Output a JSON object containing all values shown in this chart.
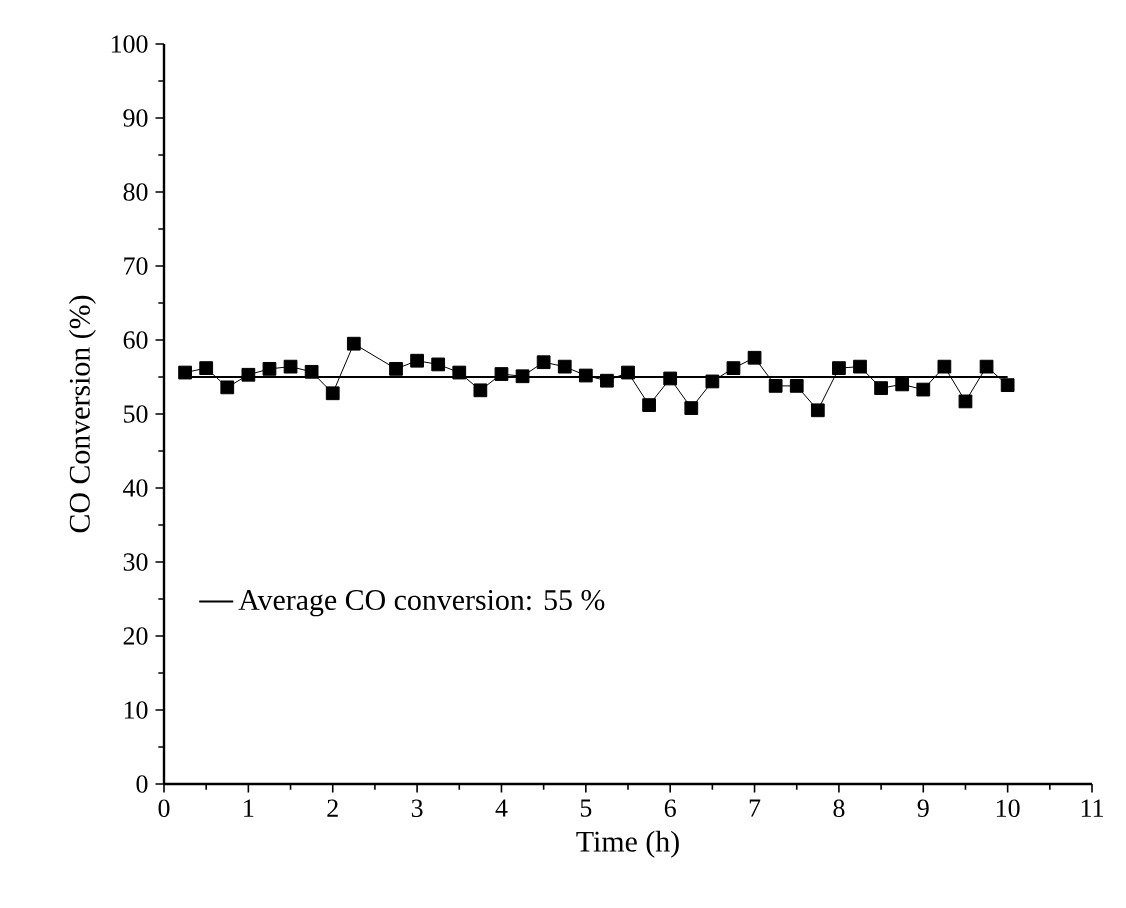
{
  "chart_data": {
    "type": "line",
    "xlabel": "Time (h)",
    "ylabel": "CO Conversion (%)",
    "xlim": [
      0,
      11
    ],
    "xticks": [
      0,
      1,
      2,
      3,
      4,
      5,
      6,
      7,
      8,
      9,
      10,
      11
    ],
    "ylim": [
      0,
      100
    ],
    "yticks": [
      0,
      10,
      20,
      30,
      40,
      50,
      60,
      70,
      80,
      90,
      100
    ],
    "legend": "bottom left",
    "grid": false,
    "series": [
      {
        "color": "#000000",
        "marker": "square",
        "x": [
          0.25,
          0.5,
          0.75,
          1,
          1.25,
          1.5,
          1.75,
          2,
          2.25,
          2.75,
          3,
          3.25,
          3.5,
          3.75,
          4,
          4.25,
          4.5,
          4.75,
          5,
          5.25,
          5.5,
          5.75,
          6,
          6.25,
          6.5,
          6.75,
          7,
          7.25,
          7.5,
          7.75,
          8,
          8.25,
          8.5,
          8.75,
          9,
          9.25,
          9.5,
          9.75,
          10
        ],
        "values": [
          55.6,
          56.2,
          53.6,
          55.3,
          56.1,
          56.4,
          55.7,
          52.8,
          59.5,
          56.1,
          57.2,
          56.7,
          55.6,
          53.2,
          55.4,
          55.1,
          57,
          56.4,
          55.2,
          54.5,
          55.6,
          51.2,
          54.8,
          50.8,
          54.4,
          56.2,
          57.6,
          53.8,
          53.8,
          50.5,
          56.2,
          56.4,
          53.5,
          54,
          53.3,
          56.4,
          51.7,
          56.4,
          53.9
        ]
      },
      {
        "name": "Average CO conversion: 55 %",
        "color": "#000000",
        "marker": "none",
        "x": [
          0.25,
          10
        ],
        "values": [
          55,
          55
        ]
      }
    ]
  }
}
